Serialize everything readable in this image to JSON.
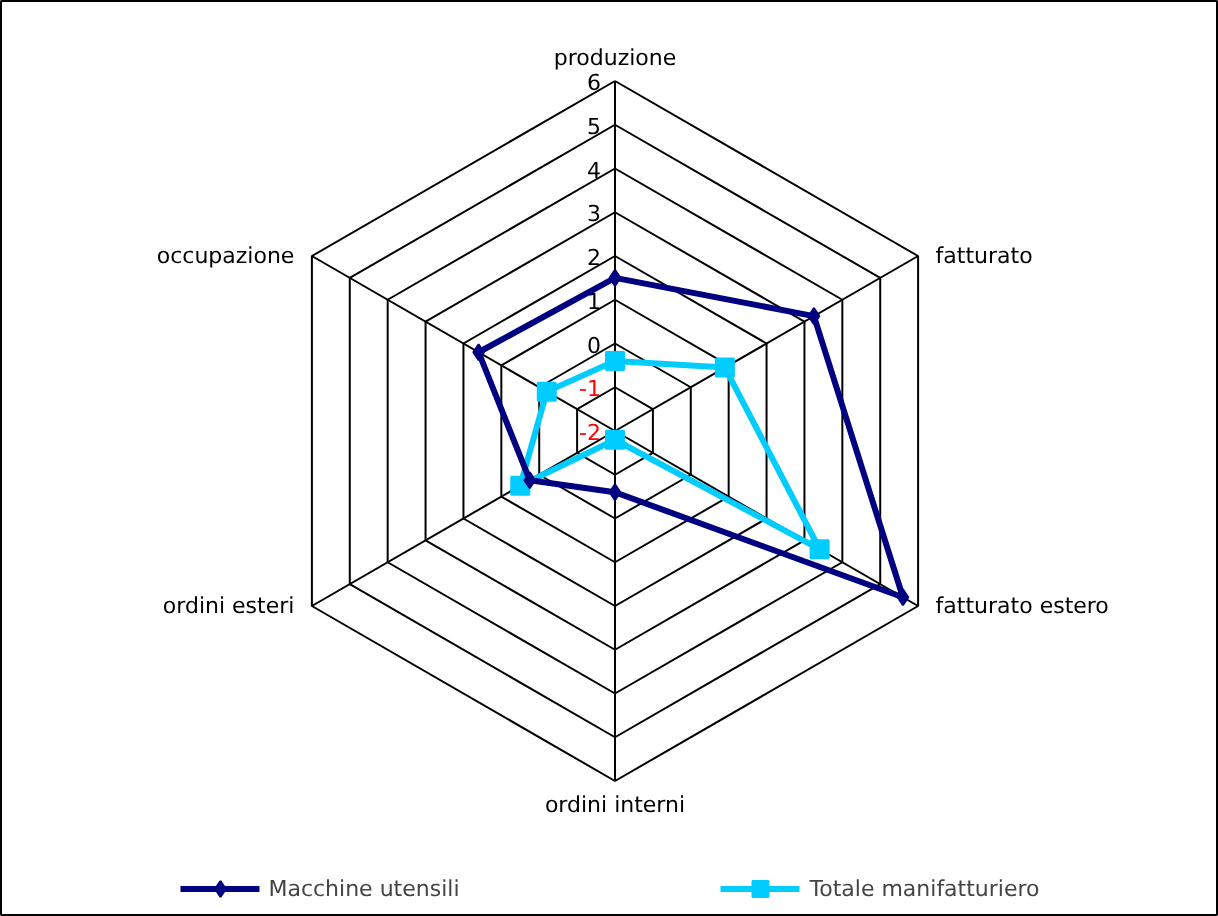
{
  "chart_data": {
    "type": "radar",
    "categories": [
      "produzione",
      "fatturato",
      "fatturato estero",
      "ordini interni",
      "ordini esteri",
      "occupazione"
    ],
    "series": [
      {
        "name": "Macchine utensili",
        "color": "#000080",
        "marker": "diamond",
        "values": [
          1.5,
          3.25,
          5.6,
          -0.6,
          0.25,
          1.6
        ]
      },
      {
        "name": "Totale manifatturiero",
        "color": "#00ccff",
        "marker": "square",
        "values": [
          -0.4,
          0.9,
          3.4,
          -1.8,
          0.5,
          -0.2
        ]
      }
    ],
    "ylim": [
      -2,
      6
    ],
    "yticks": [
      -2,
      -1,
      0,
      1,
      2,
      3,
      4,
      5,
      6
    ],
    "grid": true,
    "legend": "bottom"
  }
}
